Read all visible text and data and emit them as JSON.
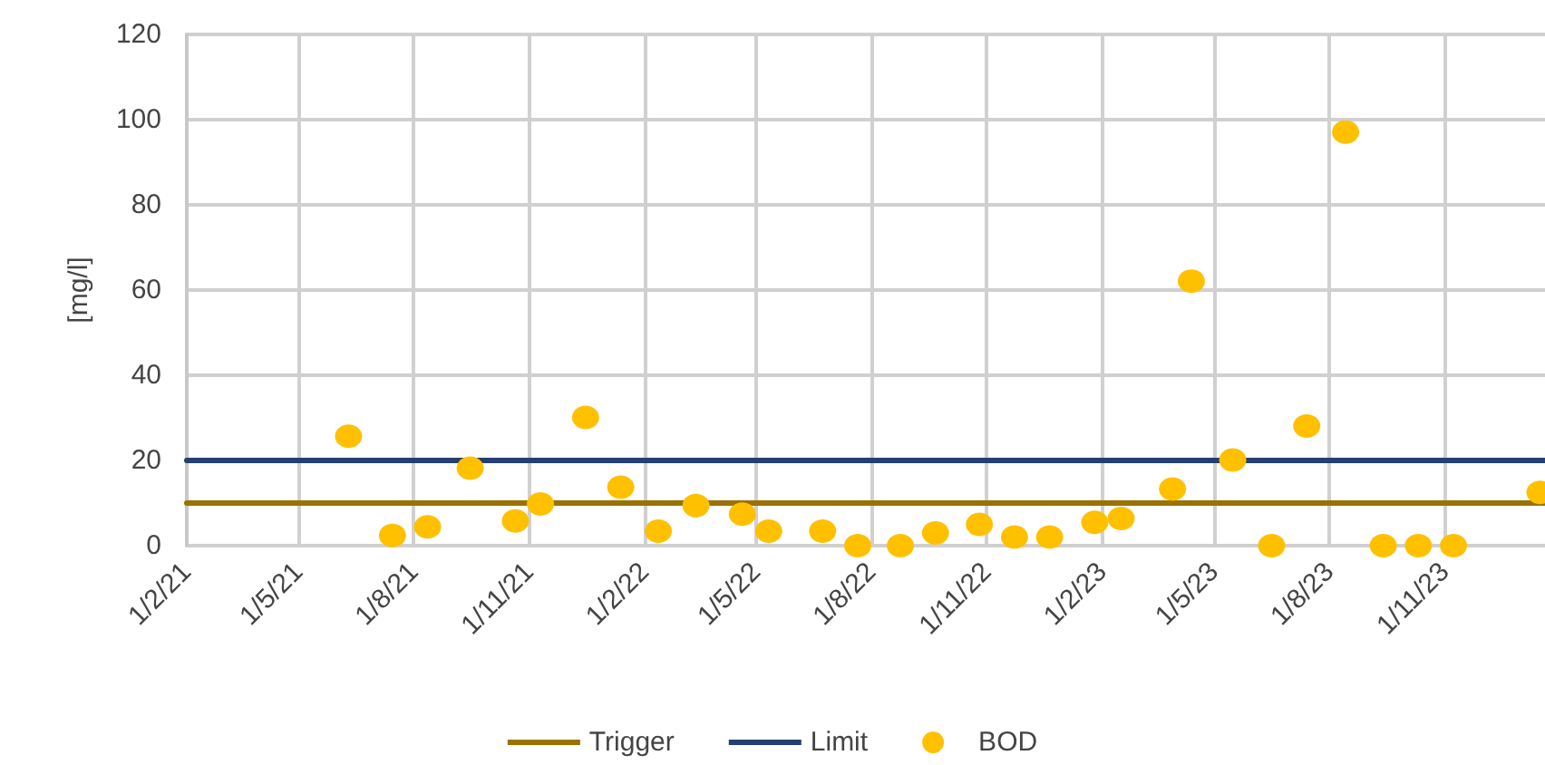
{
  "chart_data": {
    "type": "scatter",
    "ylabel": "[mg/l]",
    "xlim": [
      "2021-02-01",
      "2024-01-20"
    ],
    "ylim": [
      0,
      120
    ],
    "xticks": [
      {
        "value": "2021-02-01",
        "label": "1/2/21"
      },
      {
        "value": "2021-05-01",
        "label": "1/5/21"
      },
      {
        "value": "2021-08-01",
        "label": "1/8/21"
      },
      {
        "value": "2021-11-01",
        "label": "1/11/21"
      },
      {
        "value": "2022-02-01",
        "label": "1/2/22"
      },
      {
        "value": "2022-05-01",
        "label": "1/5/22"
      },
      {
        "value": "2022-08-01",
        "label": "1/8/22"
      },
      {
        "value": "2022-11-01",
        "label": "1/11/22"
      },
      {
        "value": "2023-02-01",
        "label": "1/2/23"
      },
      {
        "value": "2023-05-01",
        "label": "1/5/23"
      },
      {
        "value": "2023-08-01",
        "label": "1/8/23"
      },
      {
        "value": "2023-11-01",
        "label": "1/11/23"
      }
    ],
    "yticks": [
      0,
      20,
      40,
      60,
      80,
      100,
      120
    ],
    "grid": true,
    "legend": "bottom",
    "series": [
      {
        "name": "Trigger",
        "type": "line",
        "color": "#9a7200",
        "marker": "none",
        "line_style": "solid",
        "x": [
          "2021-02-01",
          "2024-01-20"
        ],
        "values": [
          10,
          10
        ]
      },
      {
        "name": "Limit",
        "type": "line",
        "color": "#243f73",
        "marker": "none",
        "line_style": "solid",
        "x": [
          "2021-02-01",
          "2024-01-20"
        ],
        "values": [
          20,
          20
        ]
      },
      {
        "name": "BOD",
        "color": "#ffc000",
        "marker": "circle",
        "x": [
          "2021-06-10",
          "2021-07-15",
          "2021-08-12",
          "2021-09-15",
          "2021-10-21",
          "2021-11-10",
          "2021-12-16",
          "2022-01-13",
          "2022-02-12",
          "2022-03-14",
          "2022-04-20",
          "2022-05-11",
          "2022-06-23",
          "2022-07-21",
          "2022-08-24",
          "2022-09-21",
          "2022-10-26",
          "2022-11-23",
          "2022-12-21",
          "2023-01-26",
          "2023-02-16",
          "2023-03-29",
          "2023-04-13",
          "2023-05-16",
          "2023-06-16",
          "2023-07-14",
          "2023-08-14",
          "2023-09-13",
          "2023-10-11",
          "2023-11-08",
          "2024-01-16"
        ],
        "values": [
          25.7,
          2.4,
          4.4,
          18.2,
          5.8,
          9.8,
          30.1,
          13.7,
          3.4,
          9.4,
          7.4,
          3.4,
          3.4,
          0,
          0,
          3.0,
          5.0,
          2.0,
          2.0,
          5.5,
          6.4,
          13.3,
          62.1,
          20.1,
          0,
          28.1,
          97.1,
          0,
          0,
          0,
          12.5
        ]
      }
    ]
  }
}
